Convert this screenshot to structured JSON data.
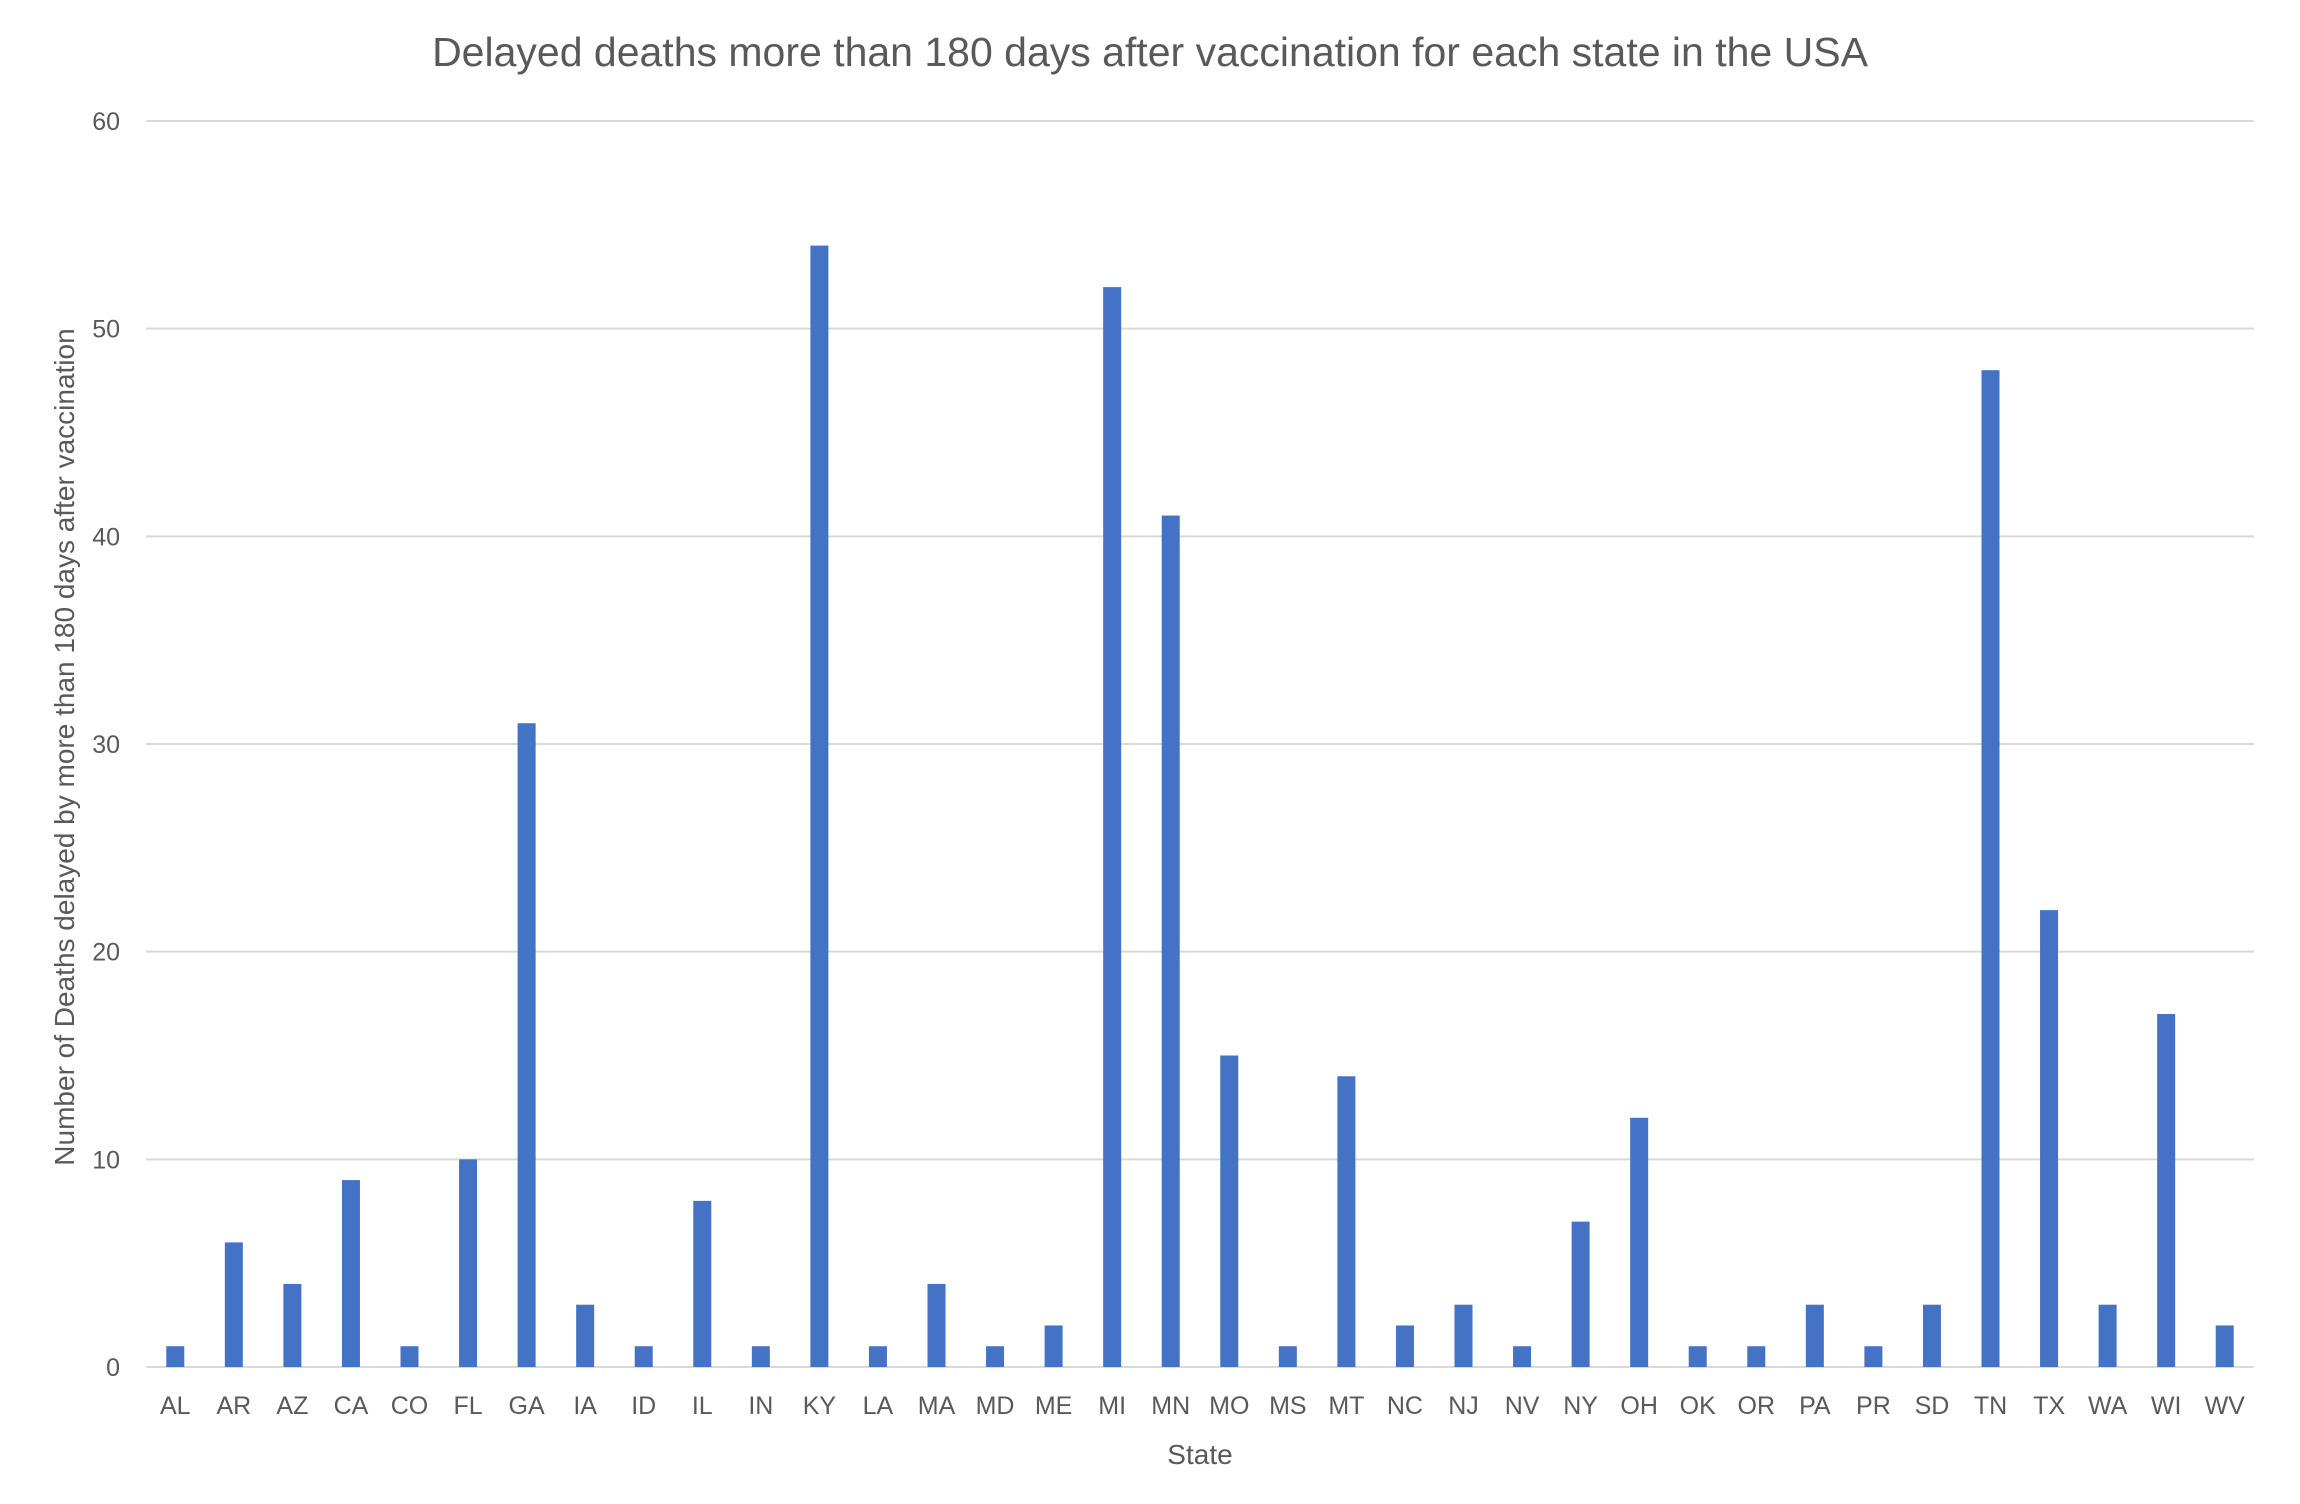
{
  "chart_data": {
    "type": "bar",
    "title": "Delayed deaths more than 180 days after vaccination for each state in the USA",
    "xlabel": "State",
    "ylabel": "Number of Deaths delayed by more than 180 days after vaccination",
    "ylim": [
      0,
      60
    ],
    "yticks": [
      0,
      10,
      20,
      30,
      40,
      50,
      60
    ],
    "grid": true,
    "legend": "none",
    "bar_color": "#4472c4",
    "categories": [
      "AL",
      "AR",
      "AZ",
      "CA",
      "CO",
      "FL",
      "GA",
      "IA",
      "ID",
      "IL",
      "IN",
      "KY",
      "LA",
      "MA",
      "MD",
      "ME",
      "MI",
      "MN",
      "MO",
      "MS",
      "MT",
      "NC",
      "NJ",
      "NV",
      "NY",
      "OH",
      "OK",
      "OR",
      "PA",
      "PR",
      "SD",
      "TN",
      "TX",
      "WA",
      "WI",
      "WV"
    ],
    "values": [
      1,
      6,
      4,
      9,
      1,
      10,
      31,
      3,
      1,
      8,
      1,
      54,
      1,
      4,
      1,
      2,
      52,
      41,
      15,
      1,
      14,
      2,
      3,
      1,
      7,
      12,
      1,
      1,
      3,
      1,
      3,
      48,
      22,
      3,
      17,
      2
    ]
  }
}
